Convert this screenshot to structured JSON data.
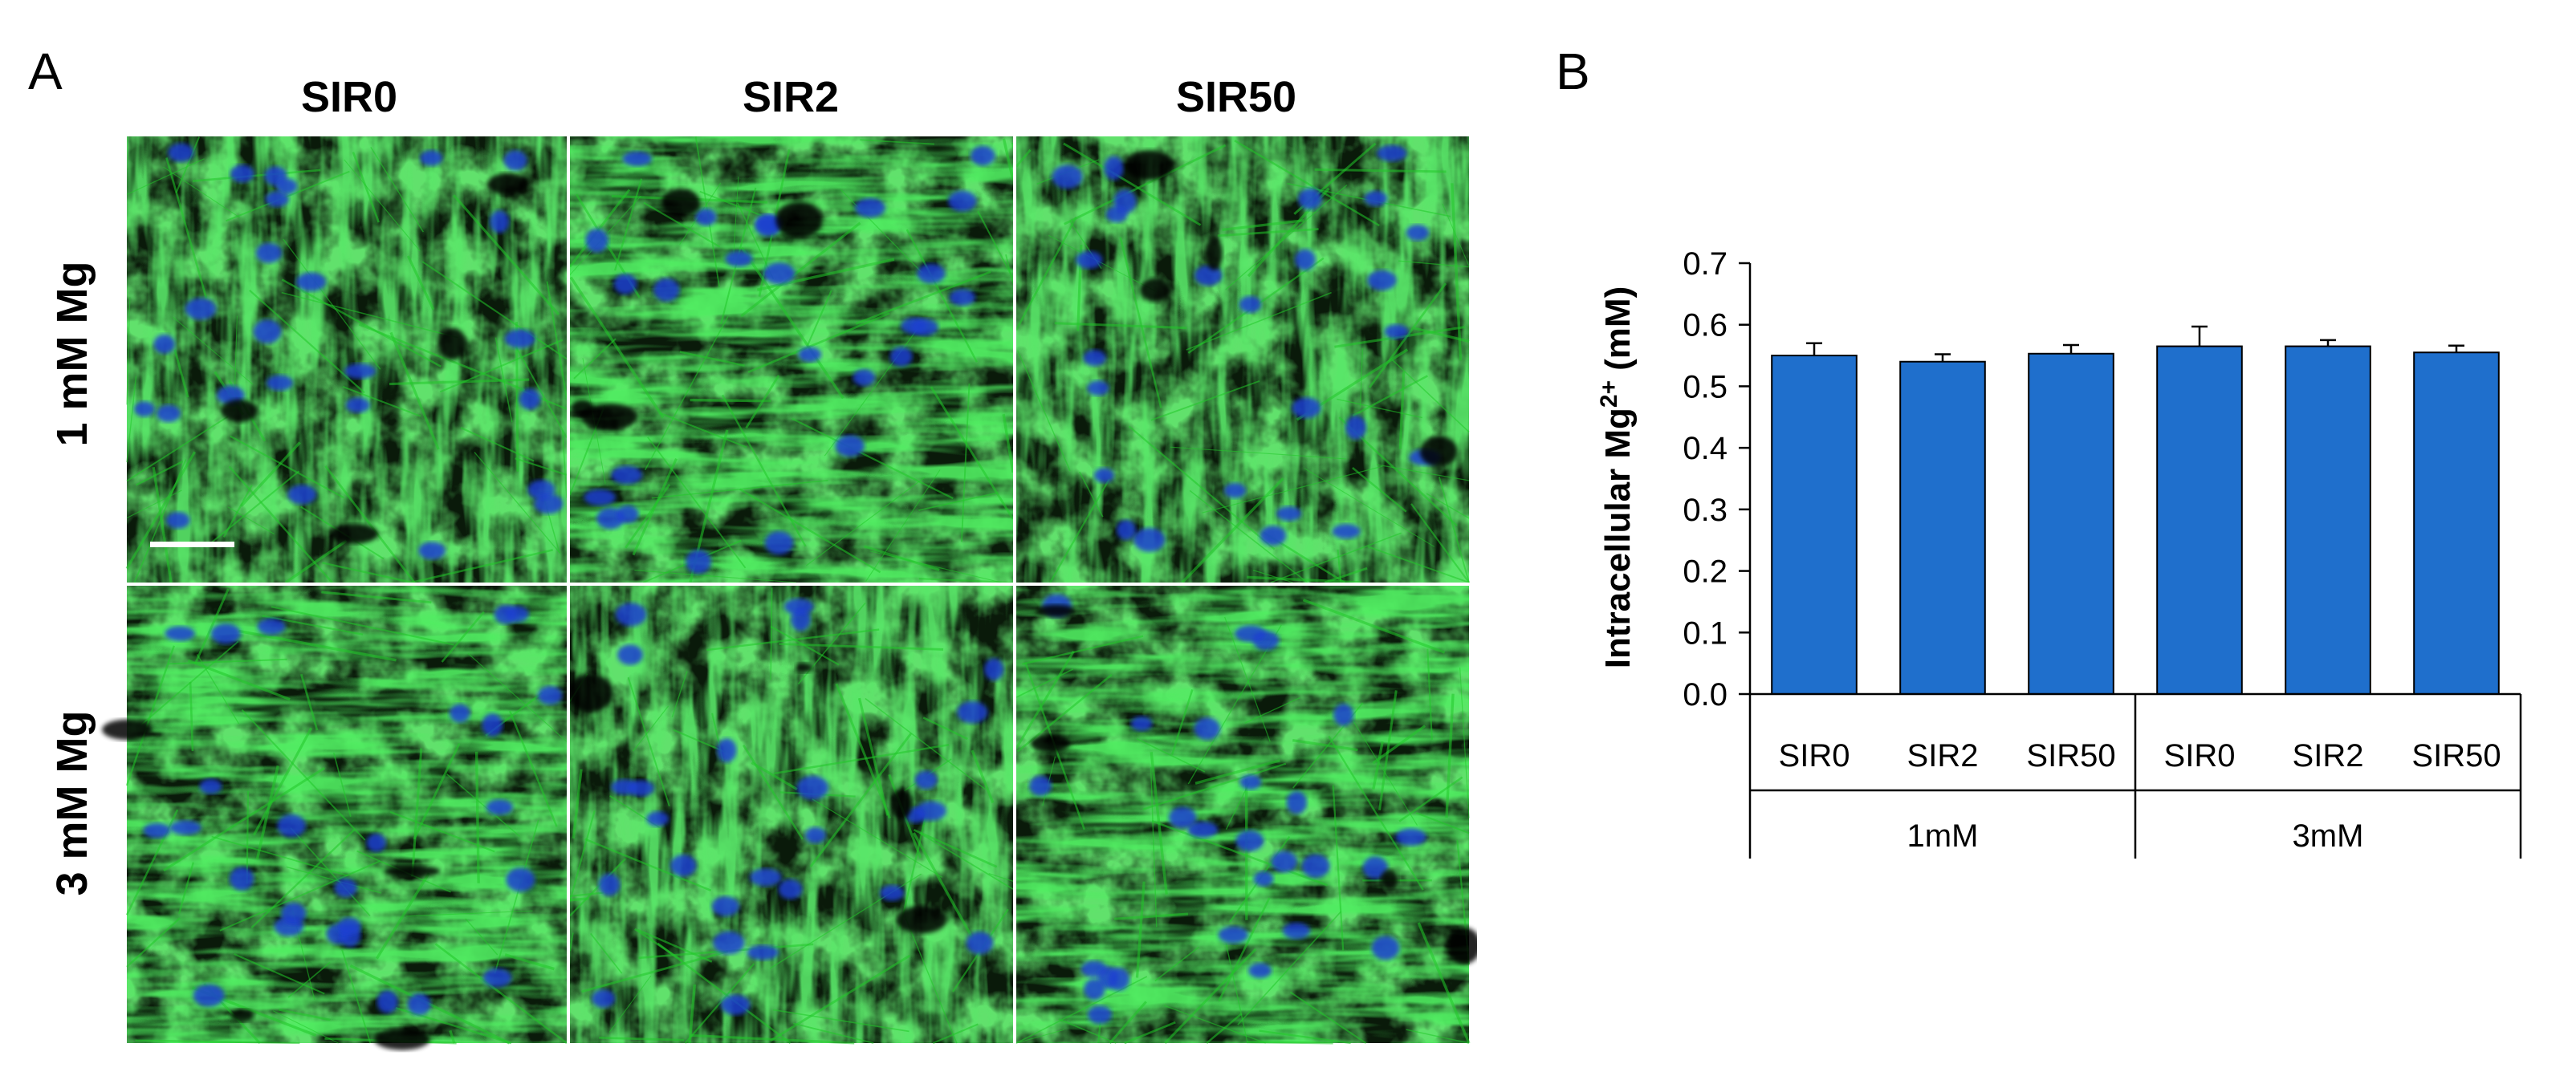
{
  "panel_a": {
    "letter": "A",
    "columns": [
      "SIR0",
      "SIR2",
      "SIR50"
    ],
    "rows": [
      "1 mM Mg",
      "3 mM Mg"
    ],
    "colors": {
      "actin": "#22c82a",
      "nuclei": "#1f3fd0",
      "background": "#0a1a0a"
    }
  },
  "panel_b": {
    "letter": "B"
  },
  "chart_data": {
    "type": "bar",
    "categories": [
      "SIR0",
      "SIR2",
      "SIR50",
      "SIR0",
      "SIR2",
      "SIR50"
    ],
    "groups": [
      {
        "label": "1mM",
        "categories": [
          "SIR0",
          "SIR2",
          "SIR50"
        ]
      },
      {
        "label": "3mM",
        "categories": [
          "SIR0",
          "SIR2",
          "SIR50"
        ]
      }
    ],
    "values": [
      0.55,
      0.54,
      0.553,
      0.565,
      0.565,
      0.555
    ],
    "errors": [
      0.02,
      0.012,
      0.014,
      0.032,
      0.01,
      0.011
    ],
    "ylabel": "Intracellular Mg",
    "ylabel_sup": "2+",
    "ylabel_unit": "(mM)",
    "ylim": [
      0,
      0.7
    ],
    "yticks": [
      "0.0",
      "0.1",
      "0.2",
      "0.3",
      "0.4",
      "0.5",
      "0.6",
      "0.7"
    ],
    "grid": false,
    "bar_color": "#1f6fcc"
  }
}
